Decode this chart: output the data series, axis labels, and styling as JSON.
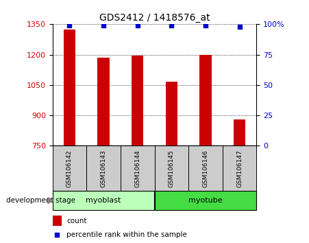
{
  "title": "GDS2412 / 1418576_at",
  "samples": [
    "GSM106142",
    "GSM106143",
    "GSM106144",
    "GSM106145",
    "GSM106146",
    "GSM106147"
  ],
  "bar_values": [
    1325,
    1185,
    1195,
    1065,
    1200,
    880
  ],
  "percentile_values": [
    99,
    99,
    99,
    99,
    99,
    98
  ],
  "ylim_left": [
    750,
    1350
  ],
  "ylim_right": [
    0,
    100
  ],
  "yticks_left": [
    750,
    900,
    1050,
    1200,
    1350
  ],
  "yticks_right": [
    0,
    25,
    50,
    75,
    100
  ],
  "ytick_labels_right": [
    "0",
    "25",
    "50",
    "75",
    "100%"
  ],
  "bar_color": "#cc0000",
  "dot_color": "#0000cc",
  "myoblast_color": "#bbffbb",
  "myotube_color": "#44dd44",
  "label_bg_color": "#cccccc",
  "groups": [
    {
      "label": "myoblast",
      "indices": [
        0,
        1,
        2
      ]
    },
    {
      "label": "myotube",
      "indices": [
        3,
        4,
        5
      ]
    }
  ],
  "group_row_label": "development stage",
  "legend_count_label": "count",
  "legend_pct_label": "percentile rank within the sample",
  "bar_width": 0.35
}
